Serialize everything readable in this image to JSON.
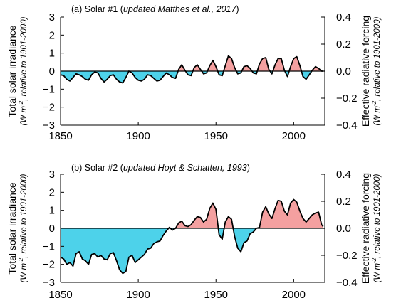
{
  "chart_data": [
    {
      "type": "area",
      "title": "(a) Solar #1 (",
      "title_italic": "updated Matthes et al., 2017",
      "title_close": ")",
      "ylabel": "Total solar irradiance",
      "ylabel_sub_pre": "(W m",
      "ylabel_sub_sup": "-2",
      "ylabel_sub_post": ", relative to 1901-2000)",
      "y2label": "Effective radiative forcing",
      "y2label_sub_pre": "(W m",
      "y2label_sub_sup": "-2",
      "y2label_sub_post": ", relative to 1901-2000)",
      "xlim": [
        1850,
        2020
      ],
      "ylim": [
        -3,
        3
      ],
      "y2lim": [
        -0.4,
        0.4
      ],
      "xticks": [
        1850,
        1900,
        1950,
        2000
      ],
      "yticks": [
        -3,
        -2,
        -1,
        0,
        1,
        2,
        3
      ],
      "y2ticks": [
        "-0.4",
        "-0.2",
        "0.0",
        "0.2",
        "0.4"
      ],
      "positive_color": "#f4a0a0",
      "negative_color": "#4dd2ea",
      "line_color": "#000000",
      "x": [
        1850,
        1852,
        1854,
        1856,
        1858,
        1860,
        1862,
        1864,
        1866,
        1868,
        1870,
        1872,
        1874,
        1876,
        1878,
        1880,
        1882,
        1884,
        1886,
        1888,
        1890,
        1892,
        1894,
        1896,
        1898,
        1900,
        1902,
        1904,
        1906,
        1908,
        1910,
        1912,
        1914,
        1916,
        1918,
        1920,
        1922,
        1924,
        1926,
        1928,
        1930,
        1932,
        1934,
        1936,
        1938,
        1940,
        1942,
        1944,
        1946,
        1948,
        1950,
        1952,
        1954,
        1956,
        1958,
        1960,
        1962,
        1964,
        1966,
        1968,
        1970,
        1972,
        1974,
        1976,
        1978,
        1980,
        1982,
        1984,
        1986,
        1988,
        1990,
        1992,
        1994,
        1996,
        1998,
        2000,
        2002,
        2004,
        2006,
        2008,
        2010,
        2012,
        2014,
        2016,
        2018,
        2019
      ],
      "y": [
        -0.2,
        -0.25,
        -0.45,
        -0.55,
        -0.35,
        -0.15,
        -0.2,
        -0.3,
        -0.45,
        -0.5,
        -0.2,
        -0.05,
        -0.1,
        -0.4,
        -0.6,
        -0.45,
        -0.25,
        -0.2,
        -0.45,
        -0.6,
        -0.65,
        -0.35,
        0.0,
        -0.1,
        -0.35,
        -0.5,
        -0.55,
        -0.45,
        -0.2,
        -0.25,
        -0.4,
        -0.55,
        -0.5,
        -0.3,
        -0.1,
        -0.2,
        -0.35,
        -0.4,
        0.1,
        0.35,
        0.05,
        -0.2,
        -0.25,
        0.2,
        0.35,
        0.1,
        -0.15,
        -0.1,
        0.3,
        0.6,
        0.25,
        -0.2,
        -0.25,
        0.3,
        0.85,
        0.7,
        0.2,
        -0.15,
        -0.1,
        0.25,
        0.3,
        0.15,
        -0.1,
        -0.15,
        0.4,
        0.7,
        0.75,
        0.1,
        -0.15,
        0.35,
        0.7,
        0.7,
        0.05,
        -0.3,
        0.25,
        0.7,
        0.8,
        0.3,
        -0.3,
        -0.45,
        -0.2,
        0.05,
        0.25,
        0.15,
        0.0,
        0.0
      ]
    },
    {
      "type": "area",
      "title": "(b) Solar #2 (",
      "title_italic": "updated Hoyt & Schatten, 1993",
      "title_close": ")",
      "ylabel": "Total solar irradiance",
      "ylabel_sub_pre": "(W m",
      "ylabel_sub_sup": "-2",
      "ylabel_sub_post": ", relative to 1901-2000)",
      "y2label": "Effective radiative forcing",
      "y2label_sub_pre": "(W m",
      "y2label_sub_sup": "-2",
      "y2label_sub_post": ", relative to 1901-2000)",
      "xlim": [
        1850,
        2020
      ],
      "ylim": [
        -3,
        3
      ],
      "y2lim": [
        -0.4,
        0.4
      ],
      "xticks": [
        1850,
        1900,
        1950,
        2000
      ],
      "yticks": [
        -3,
        -2,
        -1,
        0,
        1,
        2,
        3
      ],
      "y2ticks": [
        "-0.4",
        "-0.2",
        "0.0",
        "0.2",
        "0.4"
      ],
      "positive_color": "#f4a0a0",
      "negative_color": "#4dd2ea",
      "line_color": "#000000",
      "x": [
        1850,
        1852,
        1854,
        1856,
        1858,
        1860,
        1862,
        1864,
        1866,
        1868,
        1870,
        1872,
        1874,
        1876,
        1878,
        1880,
        1882,
        1884,
        1886,
        1888,
        1890,
        1892,
        1894,
        1896,
        1898,
        1900,
        1902,
        1904,
        1906,
        1908,
        1910,
        1912,
        1914,
        1916,
        1918,
        1920,
        1922,
        1924,
        1926,
        1928,
        1930,
        1932,
        1934,
        1936,
        1938,
        1940,
        1942,
        1944,
        1946,
        1948,
        1950,
        1952,
        1954,
        1956,
        1958,
        1960,
        1962,
        1964,
        1966,
        1968,
        1970,
        1972,
        1974,
        1976,
        1978,
        1980,
        1982,
        1984,
        1986,
        1988,
        1990,
        1992,
        1994,
        1996,
        1998,
        2000,
        2002,
        2004,
        2006,
        2008,
        2010,
        2012,
        2014,
        2016,
        2018,
        2019
      ],
      "y": [
        -1.6,
        -1.7,
        -2.0,
        -1.9,
        -2.1,
        -1.4,
        -1.3,
        -1.7,
        -1.8,
        -2.0,
        -1.45,
        -1.4,
        -1.6,
        -1.5,
        -1.7,
        -1.75,
        -1.4,
        -1.35,
        -1.8,
        -2.3,
        -2.5,
        -2.4,
        -1.6,
        -1.5,
        -1.9,
        -1.75,
        -1.6,
        -1.45,
        -1.15,
        -1.1,
        -0.85,
        -0.75,
        -0.7,
        -0.4,
        -0.15,
        0.05,
        -0.1,
        0.0,
        0.3,
        0.4,
        0.15,
        0.1,
        0.2,
        0.45,
        0.65,
        0.6,
        0.35,
        0.5,
        1.1,
        1.4,
        1.05,
        -0.35,
        -0.6,
        0.35,
        0.65,
        0.5,
        -0.45,
        -1.1,
        -1.3,
        -0.8,
        -0.7,
        -0.3,
        -0.2,
        0.0,
        0.05,
        0.9,
        1.2,
        0.8,
        0.55,
        1.1,
        1.55,
        1.5,
        0.95,
        0.75,
        1.4,
        1.6,
        1.45,
        0.95,
        0.55,
        0.35,
        0.55,
        0.75,
        0.85,
        0.9,
        0.2,
        0.1
      ]
    }
  ]
}
